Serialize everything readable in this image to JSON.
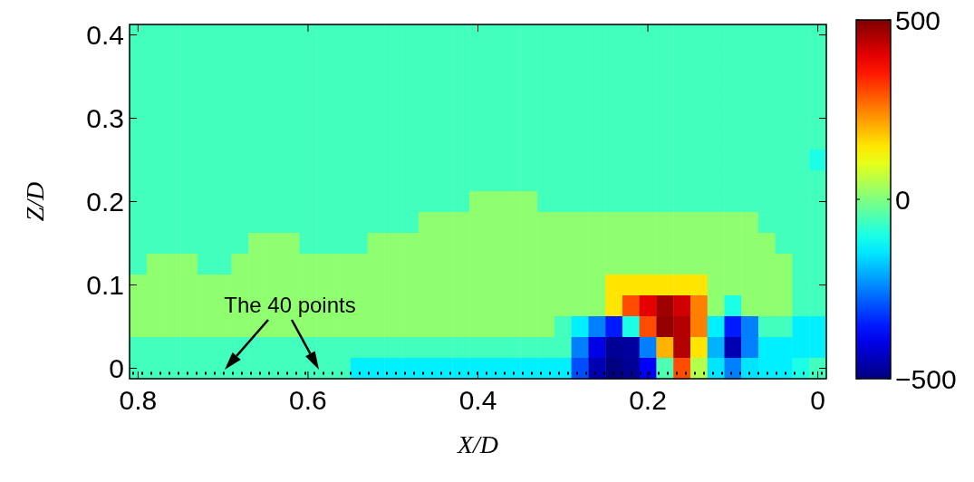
{
  "chart_data": {
    "type": "heatmap",
    "xlabel": "X/D",
    "ylabel": "Z/D",
    "categories": [
      "0.8",
      null,
      null,
      null,
      null,
      null,
      null,
      null,
      null,
      null,
      "0.6",
      null,
      null,
      null,
      null,
      null,
      null,
      null,
      null,
      null,
      "0.4",
      null,
      null,
      null,
      null,
      null,
      null,
      null,
      null,
      null,
      "0.2",
      null,
      null,
      null,
      null,
      null,
      null,
      null,
      null,
      null,
      "0"
    ],
    "y_categories": [
      "0.4",
      null,
      null,
      null,
      "0.3",
      null,
      null,
      null,
      "0.2",
      null,
      null,
      null,
      "0.1",
      null,
      null,
      null,
      "0"
    ],
    "clim": [
      -500,
      500
    ],
    "cticks": [
      -500,
      0,
      500
    ],
    "cells": [
      [
        -60,
        -60,
        -60,
        -60,
        -60,
        -60,
        -60,
        -60,
        -60,
        -60,
        -60,
        -60,
        -60,
        -60,
        -60,
        -60,
        -60,
        -60,
        -60,
        -60,
        -60,
        -60,
        -60,
        -60,
        -60,
        -60,
        -60,
        -60,
        -60,
        -60,
        -60,
        -60,
        -60,
        -60,
        -60,
        -60,
        -60,
        -60,
        -60,
        -60,
        -60
      ],
      [
        -60,
        -60,
        -60,
        -60,
        -60,
        -60,
        -60,
        -60,
        -60,
        -60,
        -60,
        -60,
        -60,
        -60,
        -60,
        -60,
        -60,
        -60,
        -60,
        -60,
        -60,
        -60,
        -60,
        -60,
        -60,
        -60,
        -60,
        -60,
        -60,
        -60,
        -60,
        -60,
        -60,
        -60,
        -60,
        -60,
        -60,
        -60,
        -60,
        -60,
        -60
      ],
      [
        -60,
        -60,
        -60,
        -60,
        -60,
        -60,
        -60,
        -60,
        -60,
        -60,
        -60,
        -60,
        -60,
        -60,
        -60,
        -60,
        -60,
        -60,
        -60,
        -60,
        -60,
        -60,
        -60,
        -60,
        -60,
        -60,
        -60,
        -60,
        -60,
        -60,
        -60,
        -60,
        -60,
        -60,
        -60,
        -60,
        -60,
        -60,
        -60,
        -60,
        -60
      ],
      [
        -60,
        -60,
        -60,
        -60,
        -60,
        -60,
        -60,
        -60,
        -60,
        -60,
        -60,
        -60,
        -60,
        -60,
        -60,
        -60,
        -60,
        -60,
        -60,
        -60,
        -60,
        -60,
        -60,
        -60,
        -60,
        -60,
        -60,
        -60,
        -60,
        -60,
        -60,
        -60,
        -60,
        -60,
        -60,
        -60,
        -60,
        -60,
        -60,
        -60,
        -60
      ],
      [
        -60,
        -60,
        -60,
        -60,
        -60,
        -60,
        -60,
        -60,
        -60,
        -60,
        -60,
        -60,
        -60,
        -60,
        -60,
        -60,
        -60,
        -60,
        -60,
        -60,
        -60,
        -60,
        -60,
        -60,
        -60,
        -60,
        -60,
        -60,
        -60,
        -60,
        -60,
        -60,
        -60,
        -60,
        -60,
        -60,
        -60,
        -60,
        -60,
        -60,
        -60
      ],
      [
        -60,
        -60,
        -60,
        -60,
        -60,
        -60,
        -60,
        -60,
        -60,
        -60,
        -60,
        -60,
        -60,
        -60,
        -60,
        -60,
        -60,
        -60,
        -60,
        -60,
        -60,
        -60,
        -60,
        -60,
        -60,
        -60,
        -60,
        -60,
        -60,
        -60,
        -60,
        -60,
        -60,
        -60,
        -60,
        -60,
        -60,
        -60,
        -60,
        -60,
        -60
      ],
      [
        -60,
        -60,
        -60,
        -60,
        -60,
        -60,
        -60,
        -60,
        -60,
        -60,
        -60,
        -60,
        -60,
        -60,
        -60,
        -60,
        -60,
        -60,
        -60,
        -60,
        -60,
        -60,
        -60,
        -60,
        -60,
        -60,
        -60,
        -60,
        -60,
        -60,
        -60,
        -60,
        -60,
        -60,
        -60,
        -60,
        -60,
        -60,
        -60,
        -60,
        -100
      ],
      [
        -60,
        -60,
        -60,
        -60,
        -60,
        -60,
        -60,
        -60,
        -60,
        -60,
        -60,
        -60,
        -60,
        -60,
        -60,
        -60,
        -60,
        -60,
        -60,
        -60,
        -60,
        -60,
        -60,
        -60,
        -60,
        -60,
        -60,
        -60,
        -60,
        -60,
        -60,
        -60,
        -60,
        -60,
        -60,
        -60,
        -60,
        -60,
        -60,
        -60,
        -60
      ],
      [
        -60,
        -60,
        -60,
        -60,
        -60,
        -60,
        -60,
        -60,
        -60,
        -60,
        -60,
        -60,
        -60,
        -60,
        -60,
        -60,
        -60,
        -60,
        -60,
        -60,
        15,
        15,
        15,
        15,
        -60,
        -60,
        -60,
        -60,
        -60,
        -60,
        -60,
        -60,
        -60,
        -60,
        -60,
        -60,
        -60,
        -60,
        -60,
        -60,
        -60
      ],
      [
        -60,
        -60,
        -60,
        -60,
        -60,
        -60,
        -60,
        -60,
        -60,
        -60,
        -60,
        -60,
        -60,
        -60,
        -60,
        -60,
        -60,
        15,
        15,
        15,
        15,
        15,
        15,
        15,
        15,
        15,
        15,
        15,
        15,
        15,
        15,
        15,
        15,
        15,
        15,
        15,
        15,
        -60,
        -60,
        -60,
        -60
      ],
      [
        -60,
        -60,
        -60,
        -60,
        -60,
        -60,
        -60,
        15,
        15,
        15,
        -60,
        -60,
        -60,
        -60,
        15,
        15,
        15,
        15,
        15,
        15,
        15,
        15,
        15,
        15,
        15,
        15,
        15,
        15,
        15,
        15,
        15,
        15,
        15,
        15,
        15,
        15,
        15,
        15,
        -60,
        -60,
        -60
      ],
      [
        -60,
        15,
        15,
        15,
        -60,
        -60,
        15,
        15,
        15,
        15,
        15,
        15,
        15,
        15,
        15,
        15,
        15,
        15,
        15,
        15,
        15,
        15,
        15,
        15,
        15,
        15,
        15,
        15,
        15,
        15,
        15,
        15,
        15,
        15,
        15,
        15,
        15,
        15,
        15,
        -60,
        -60
      ],
      [
        15,
        15,
        15,
        15,
        15,
        15,
        15,
        15,
        15,
        15,
        15,
        15,
        15,
        15,
        15,
        15,
        15,
        15,
        15,
        15,
        15,
        15,
        15,
        15,
        15,
        15,
        15,
        15,
        150,
        150,
        150,
        150,
        150,
        150,
        15,
        15,
        15,
        15,
        15,
        -60,
        -60
      ],
      [
        15,
        15,
        15,
        15,
        15,
        15,
        15,
        15,
        15,
        15,
        15,
        15,
        15,
        15,
        15,
        15,
        15,
        15,
        15,
        15,
        15,
        15,
        15,
        15,
        15,
        15,
        15,
        15,
        150,
        300,
        400,
        470,
        420,
        250,
        15,
        -100,
        15,
        15,
        15,
        -60,
        -60
      ],
      [
        15,
        15,
        15,
        15,
        15,
        15,
        15,
        15,
        15,
        15,
        15,
        15,
        15,
        15,
        15,
        15,
        15,
        15,
        15,
        15,
        15,
        15,
        15,
        15,
        15,
        -60,
        -140,
        -250,
        -350,
        -100,
        300,
        480,
        450,
        250,
        -140,
        -350,
        -250,
        -60,
        -60,
        -140,
        -140
      ],
      [
        -60,
        -60,
        -60,
        -60,
        -60,
        -60,
        -60,
        -60,
        -60,
        -60,
        -60,
        -60,
        -60,
        -60,
        -60,
        -60,
        -60,
        -60,
        -60,
        -60,
        -60,
        -60,
        -60,
        -60,
        -60,
        -60,
        -250,
        -400,
        -480,
        -470,
        -250,
        200,
        450,
        150,
        -200,
        -450,
        -250,
        -140,
        -140,
        -140,
        -140
      ],
      [
        -60,
        -60,
        -60,
        -60,
        -60,
        -60,
        -60,
        -60,
        -60,
        -60,
        -60,
        -60,
        -60,
        -140,
        -140,
        -140,
        -140,
        -140,
        -140,
        -140,
        -140,
        -140,
        -140,
        -140,
        -140,
        -140,
        -300,
        -450,
        -500,
        -480,
        -380,
        -50,
        300,
        50,
        -150,
        -250,
        -150,
        -140,
        -140,
        -100,
        -60
      ]
    ],
    "annotations": [
      "The 40 points"
    ]
  }
}
